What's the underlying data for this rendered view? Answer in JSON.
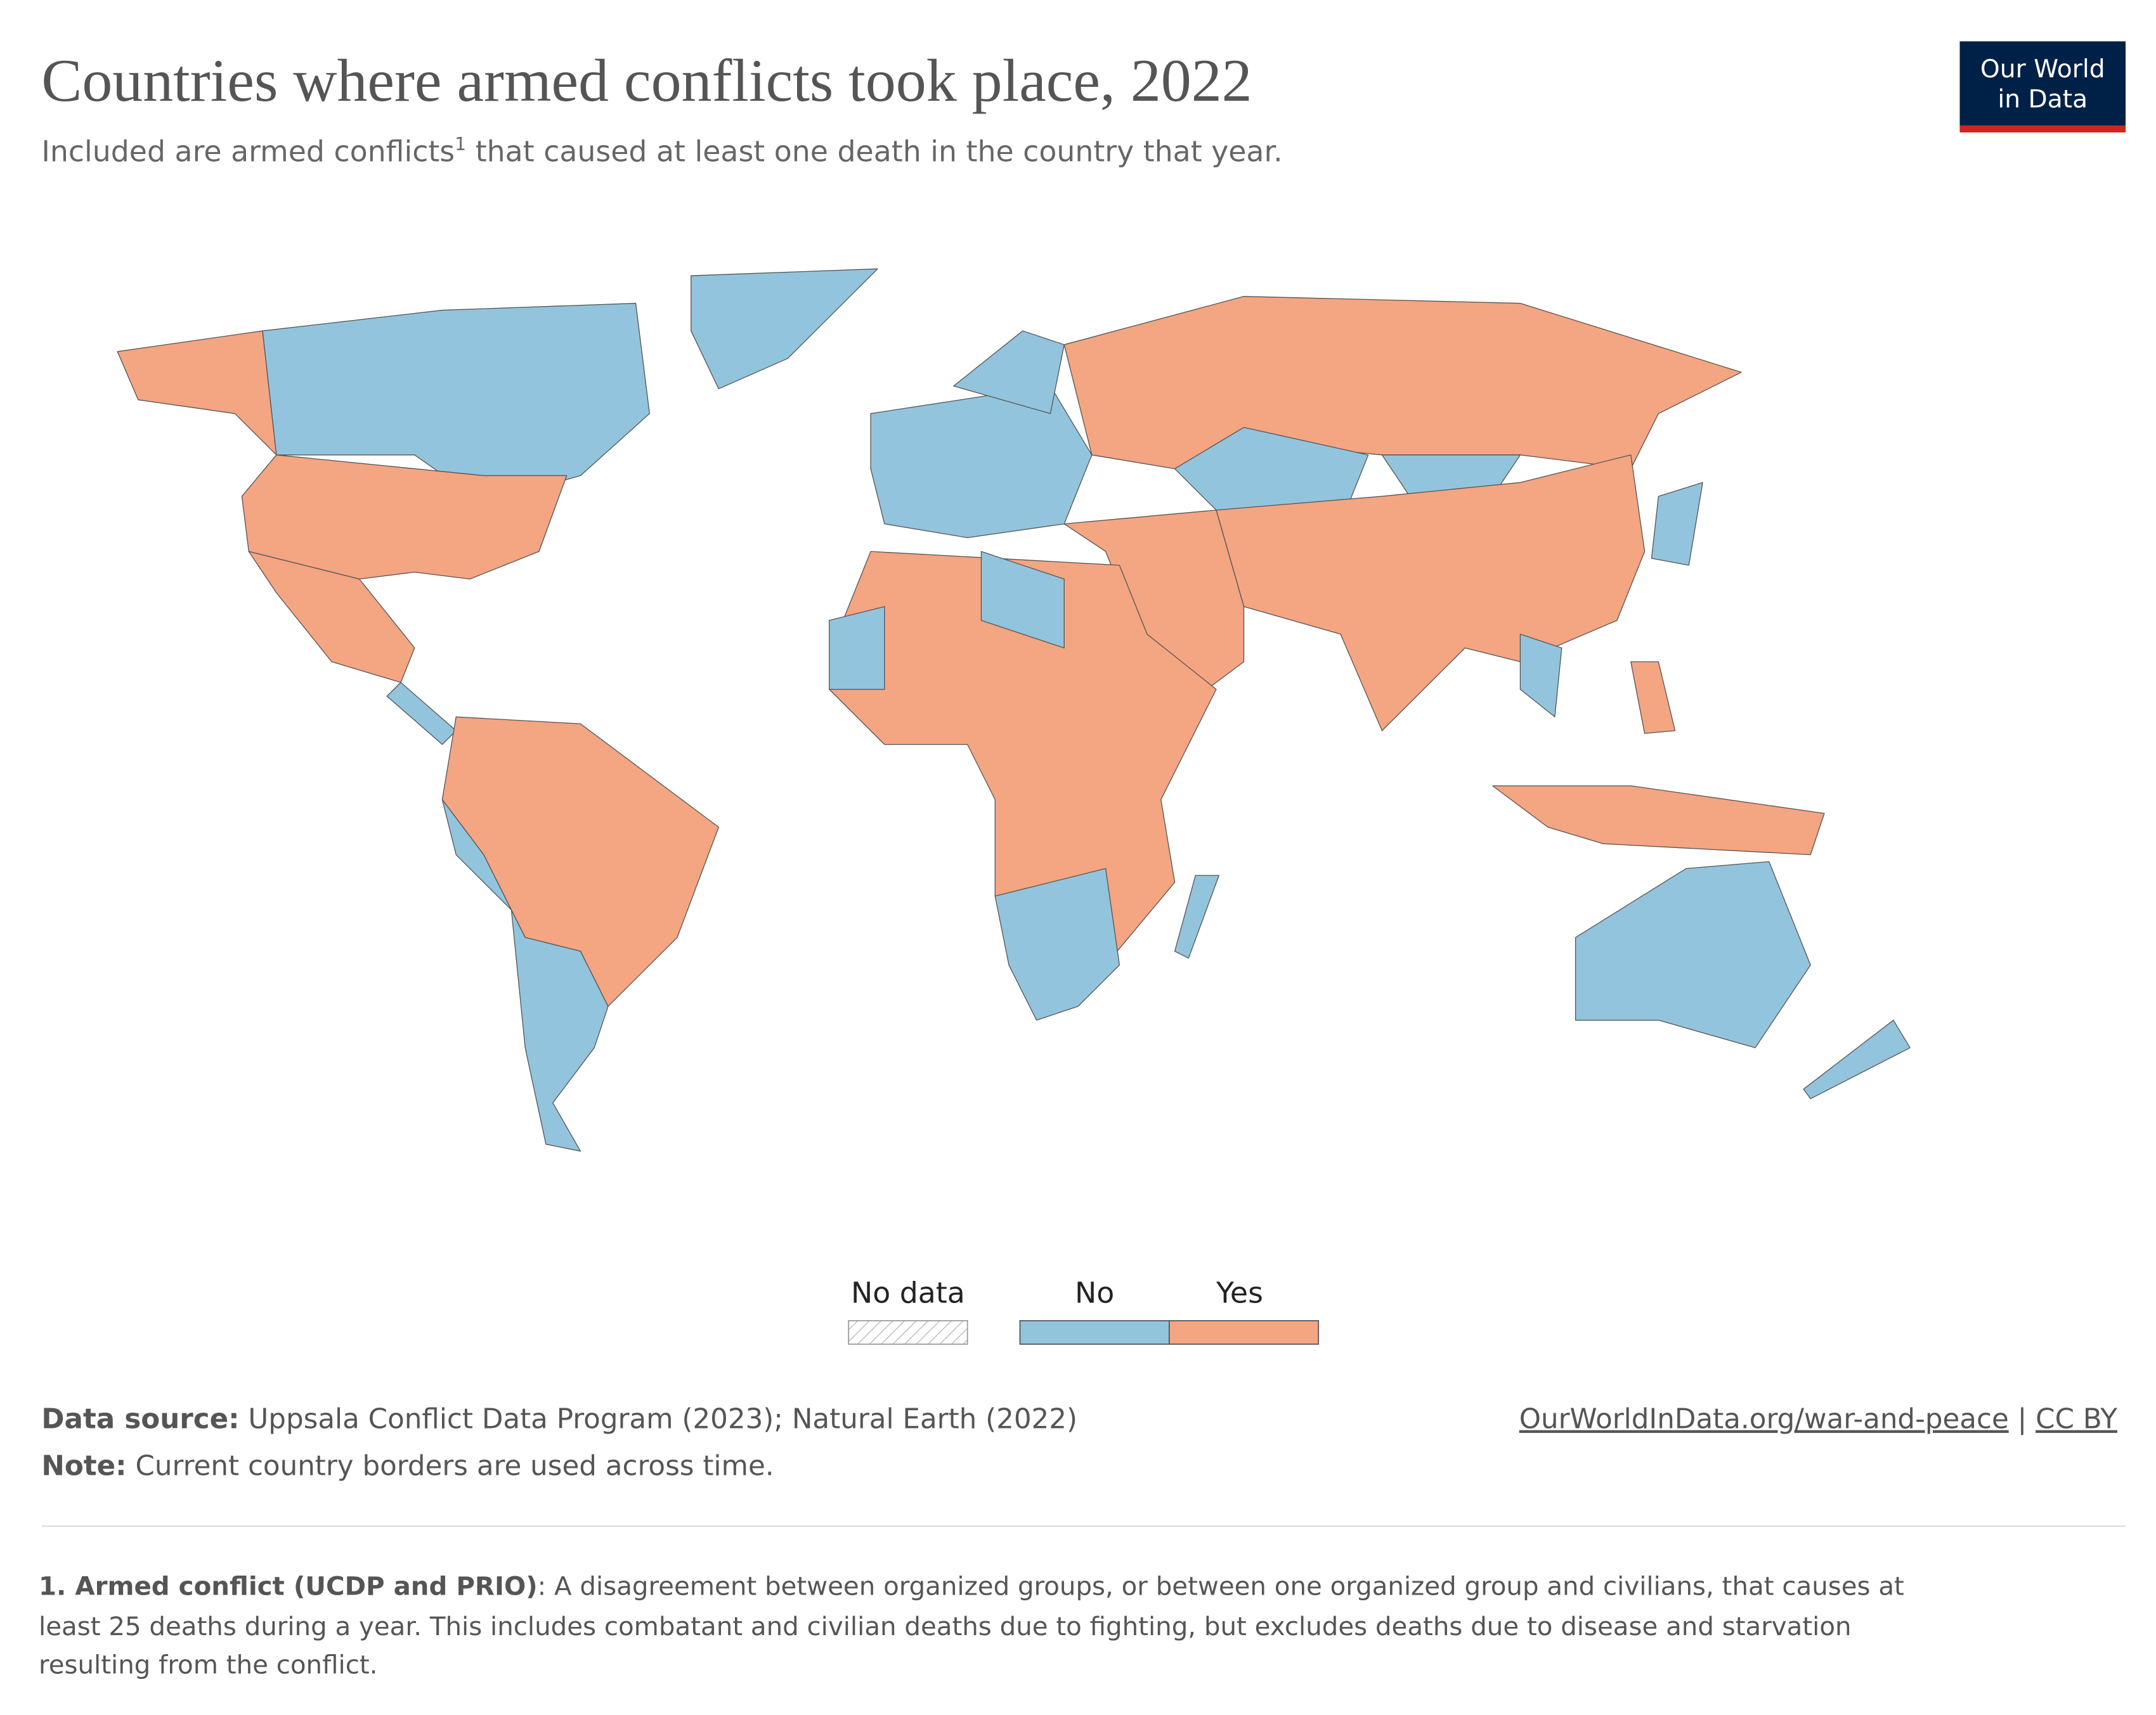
{
  "header": {
    "title": "Countries where armed conflicts took place, 2022",
    "subtitle_pre": "Included are armed conflicts",
    "subtitle_sup": "1",
    "subtitle_post": " that caused at least one death in the country that year."
  },
  "logo": [
    "Our World",
    "in Data"
  ],
  "legend": {
    "items": [
      {
        "label": "No data"
      },
      {
        "label": "No",
        "color": "#93c4dd"
      },
      {
        "label": "Yes",
        "color": "#f4a582"
      }
    ]
  },
  "footer": {
    "source_label": "Data source:",
    "source": " Uppsala Conflict Data Program (2023); Natural Earth (2022)",
    "note_label": "Note:",
    "note": " Current country borders are used across time.",
    "url": "OurWorldInData.org/war-and-peace",
    "separator": " | ",
    "license": "CC BY"
  },
  "footnote": {
    "label": "1. Armed conflict (UCDP and PRIO)",
    "lines": [
      ": A disagreement between organized groups, or between one organized group and civilians, that causes at",
      "least 25 deaths during a year. This includes combatant and civilian deaths due to fighting, but excludes deaths due to disease and starvation",
      "resulting from the conflict."
    ]
  }
}
